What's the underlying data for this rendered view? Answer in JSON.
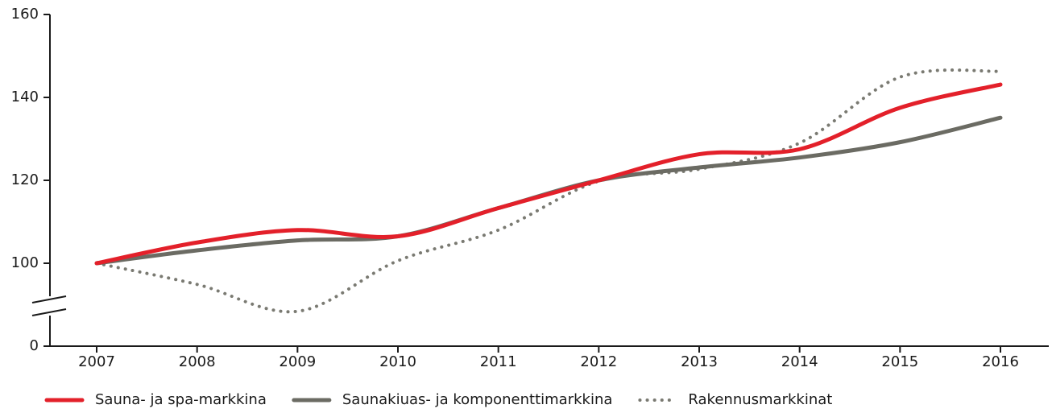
{
  "chart_data": {
    "type": "line",
    "categories": [
      "2007",
      "2008",
      "2009",
      "2010",
      "2011",
      "2012",
      "2013",
      "2014",
      "2015",
      "2016"
    ],
    "series": [
      {
        "name": "Sauna- ja spa-markkina",
        "color": "#e3202a",
        "style": "solid",
        "values": [
          100,
          105,
          108,
          106.5,
          113.3,
          120,
          126.3,
          127.5,
          137.5,
          143.1
        ]
      },
      {
        "name": "Saunakiuas- ja komponenttimarkkina",
        "color": "#6b6b63",
        "style": "solid",
        "values": [
          100,
          103.1,
          105.5,
          106.5,
          113.3,
          120,
          123.1,
          125.5,
          129.2,
          135.1
        ]
      },
      {
        "name": "Rakennusmarkkinat",
        "color": "#7a7a72",
        "style": "dotted",
        "values": [
          100,
          94.9,
          88.4,
          100.6,
          108,
          119.8,
          122.7,
          129,
          144.9,
          146.3
        ]
      }
    ],
    "ylim": [
      80,
      160
    ],
    "yticks": [
      {
        "value": 80,
        "label": "0"
      },
      100,
      120,
      140,
      160
    ],
    "y_break": true,
    "legend": "bottom",
    "grid": false
  }
}
